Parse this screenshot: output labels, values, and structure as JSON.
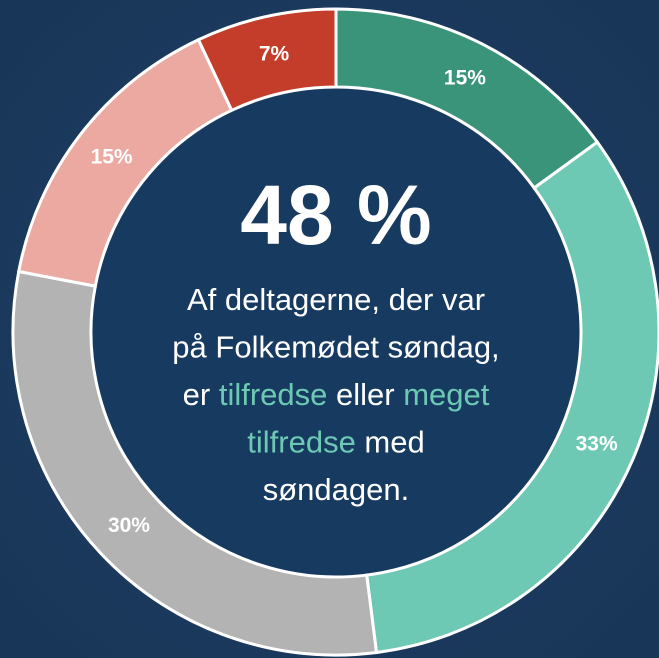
{
  "chart_data": {
    "type": "donut",
    "categories": [
      null,
      null,
      null,
      null,
      null
    ],
    "values": [
      15,
      33,
      30,
      15,
      7
    ],
    "value_labels": [
      "15%",
      "33%",
      "30%",
      "15%",
      "7%"
    ],
    "colors": [
      "#3a9479",
      "#6ec9b4",
      "#b3b3b3",
      "#eba9a1",
      "#c43c2a"
    ],
    "center_value": "48 %",
    "center_text_lines": [
      [
        {
          "text": "Af deltagerne, der var"
        }
      ],
      [
        {
          "text": "på Folkemødet søndag,"
        }
      ],
      [
        {
          "text": "er "
        },
        {
          "text": "tilfredse",
          "highlight": true
        },
        {
          "text": " eller "
        },
        {
          "text": "meget",
          "highlight": true
        }
      ],
      [
        {
          "text": "tilfredse",
          "highlight": true
        },
        {
          "text": " med"
        }
      ],
      [
        {
          "text": "søndagen."
        }
      ]
    ],
    "highlight_color": "#6ec9b4"
  }
}
